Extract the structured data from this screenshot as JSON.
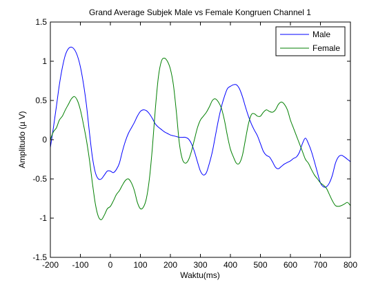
{
  "chart_data": {
    "type": "line",
    "title": "Grand Average Subjek Male vs Female Kongruen Channel 1",
    "xlabel": "Waktu(ms)",
    "ylabel": "Amplitudo (µ V)",
    "xlim": [
      -200,
      800
    ],
    "ylim": [
      -1.5,
      1.5
    ],
    "xticks": [
      -200,
      -100,
      0,
      100,
      200,
      300,
      400,
      500,
      600,
      700,
      800
    ],
    "xtick_labels": [
      "-200",
      "-100",
      "0",
      "100",
      "200",
      "300",
      "400",
      "500",
      "600",
      "700",
      "800"
    ],
    "yticks": [
      -1.5,
      -1,
      -0.5,
      0,
      0.5,
      1,
      1.5
    ],
    "ytick_labels": [
      "-1.5",
      "-1",
      "-0.5",
      "0",
      "0.5",
      "1",
      "1.5"
    ],
    "grid": false,
    "legend_position": "top-right",
    "series": [
      {
        "name": "Male",
        "color": "#0000ff",
        "x": [
          -200,
          -190,
          -180,
          -170,
          -160,
          -150,
          -140,
          -130,
          -120,
          -110,
          -100,
          -90,
          -80,
          -70,
          -60,
          -50,
          -40,
          -30,
          -20,
          -10,
          0,
          10,
          20,
          30,
          40,
          50,
          60,
          70,
          80,
          90,
          100,
          110,
          120,
          130,
          140,
          150,
          160,
          170,
          180,
          190,
          200,
          210,
          220,
          230,
          240,
          250,
          260,
          270,
          280,
          290,
          300,
          310,
          320,
          330,
          340,
          350,
          360,
          370,
          380,
          390,
          400,
          410,
          420,
          430,
          440,
          450,
          460,
          470,
          480,
          490,
          500,
          510,
          520,
          530,
          540,
          550,
          560,
          570,
          580,
          590,
          600,
          610,
          620,
          630,
          640,
          650,
          660,
          670,
          680,
          690,
          700,
          710,
          720,
          730,
          740,
          750,
          760,
          770,
          780,
          790,
          800
        ],
        "y": [
          -0.1,
          0.15,
          0.42,
          0.7,
          0.92,
          1.08,
          1.16,
          1.18,
          1.15,
          1.07,
          0.93,
          0.72,
          0.45,
          0.1,
          -0.22,
          -0.42,
          -0.5,
          -0.5,
          -0.45,
          -0.4,
          -0.4,
          -0.42,
          -0.38,
          -0.3,
          -0.15,
          -0.02,
          0.08,
          0.15,
          0.22,
          0.3,
          0.36,
          0.38,
          0.37,
          0.33,
          0.27,
          0.2,
          0.16,
          0.13,
          0.1,
          0.08,
          0.06,
          0.05,
          0.04,
          0.03,
          0.03,
          0.03,
          0.01,
          -0.05,
          -0.15,
          -0.28,
          -0.4,
          -0.45,
          -0.42,
          -0.3,
          -0.15,
          0.05,
          0.25,
          0.42,
          0.55,
          0.65,
          0.68,
          0.7,
          0.7,
          0.65,
          0.55,
          0.42,
          0.3,
          0.2,
          0.12,
          0.05,
          -0.05,
          -0.15,
          -0.2,
          -0.22,
          -0.28,
          -0.35,
          -0.37,
          -0.34,
          -0.31,
          -0.29,
          -0.27,
          -0.24,
          -0.22,
          -0.16,
          -0.05,
          0.02,
          -0.05,
          -0.15,
          -0.28,
          -0.42,
          -0.55,
          -0.6,
          -0.6,
          -0.55,
          -0.45,
          -0.3,
          -0.22,
          -0.2,
          -0.22,
          -0.25,
          -0.28
        ]
      },
      {
        "name": "Female",
        "color": "#007f00",
        "x": [
          -200,
          -190,
          -180,
          -170,
          -160,
          -150,
          -140,
          -130,
          -120,
          -110,
          -100,
          -90,
          -80,
          -70,
          -60,
          -50,
          -40,
          -30,
          -20,
          -10,
          0,
          10,
          20,
          30,
          40,
          50,
          60,
          70,
          80,
          90,
          100,
          110,
          120,
          130,
          140,
          150,
          160,
          170,
          180,
          190,
          200,
          210,
          220,
          230,
          240,
          250,
          260,
          270,
          280,
          290,
          300,
          310,
          320,
          330,
          340,
          350,
          360,
          370,
          380,
          390,
          400,
          410,
          420,
          430,
          440,
          450,
          460,
          470,
          480,
          490,
          500,
          510,
          520,
          530,
          540,
          550,
          560,
          570,
          580,
          590,
          600,
          610,
          620,
          630,
          640,
          650,
          660,
          670,
          680,
          690,
          700,
          710,
          720,
          730,
          740,
          750,
          760,
          770,
          780,
          790,
          800
        ],
        "y": [
          0.0,
          0.1,
          0.15,
          0.25,
          0.3,
          0.38,
          0.45,
          0.52,
          0.55,
          0.5,
          0.38,
          0.2,
          0.0,
          -0.25,
          -0.55,
          -0.82,
          -0.98,
          -1.02,
          -0.96,
          -0.88,
          -0.85,
          -0.78,
          -0.7,
          -0.65,
          -0.58,
          -0.52,
          -0.5,
          -0.55,
          -0.65,
          -0.8,
          -0.88,
          -0.86,
          -0.75,
          -0.5,
          -0.1,
          0.4,
          0.8,
          1.0,
          1.04,
          1.0,
          0.9,
          0.7,
          0.35,
          -0.05,
          -0.25,
          -0.3,
          -0.26,
          -0.15,
          0.0,
          0.15,
          0.25,
          0.3,
          0.35,
          0.42,
          0.5,
          0.52,
          0.48,
          0.4,
          0.25,
          0.05,
          -0.12,
          -0.22,
          -0.3,
          -0.3,
          -0.2,
          0.0,
          0.2,
          0.32,
          0.33,
          0.3,
          0.3,
          0.35,
          0.38,
          0.36,
          0.35,
          0.38,
          0.45,
          0.48,
          0.45,
          0.38,
          0.25,
          0.15,
          0.05,
          -0.05,
          -0.15,
          -0.25,
          -0.3,
          -0.38,
          -0.45,
          -0.5,
          -0.55,
          -0.58,
          -0.62,
          -0.7,
          -0.78,
          -0.84,
          -0.85,
          -0.84,
          -0.82,
          -0.8,
          -0.84
        ]
      }
    ]
  }
}
